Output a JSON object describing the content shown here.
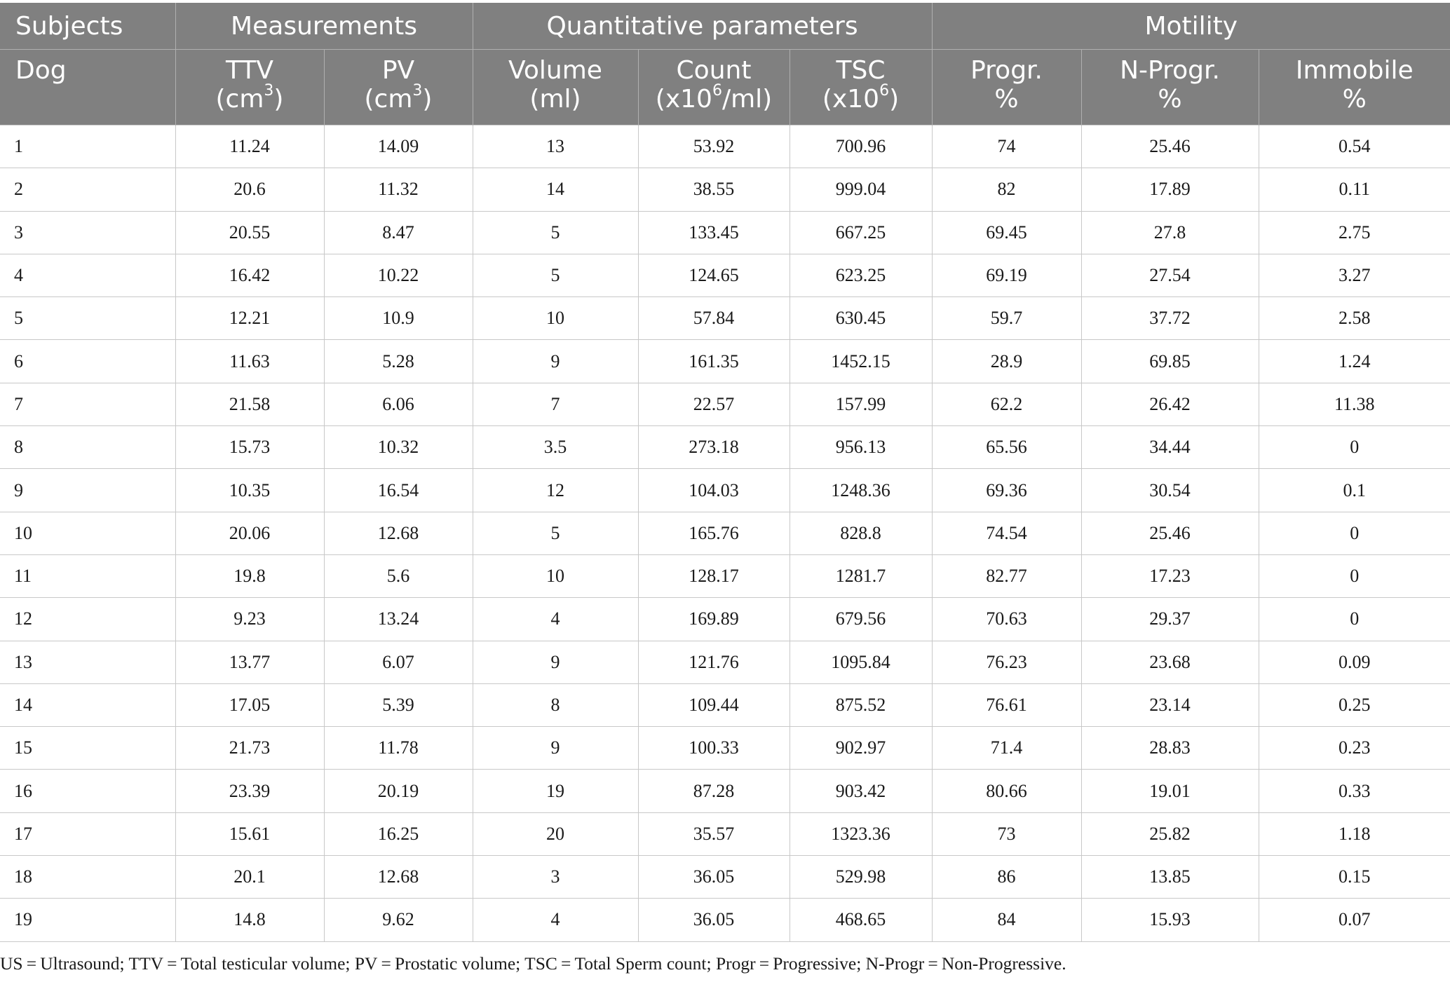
{
  "header": {
    "groups": [
      "Subjects",
      "Measurements",
      "Quantitative parameters",
      "Motility"
    ],
    "subject_label": "Dog",
    "columns": [
      {
        "name": "TTV",
        "unit_pre": "(cm",
        "unit_sup": "3",
        "unit_post": ")"
      },
      {
        "name": "PV",
        "unit_pre": "(cm",
        "unit_sup": "3",
        "unit_post": ")"
      },
      {
        "name": "Volume",
        "unit_pre": "(ml)",
        "unit_sup": "",
        "unit_post": ""
      },
      {
        "name": "Count",
        "unit_pre": "(x10",
        "unit_sup": "6",
        "unit_post": "/ml)"
      },
      {
        "name": "TSC",
        "unit_pre": "(x10",
        "unit_sup": "6",
        "unit_post": ")"
      },
      {
        "name": "Progr.",
        "unit_pre": "%",
        "unit_sup": "",
        "unit_post": ""
      },
      {
        "name": "N-Progr.",
        "unit_pre": "%",
        "unit_sup": "",
        "unit_post": ""
      },
      {
        "name": "Immobile",
        "unit_pre": "%",
        "unit_sup": "",
        "unit_post": ""
      }
    ]
  },
  "rows": [
    [
      "1",
      "11.24",
      "14.09",
      "13",
      "53.92",
      "700.96",
      "74",
      "25.46",
      "0.54"
    ],
    [
      "2",
      "20.6",
      "11.32",
      "14",
      "38.55",
      "999.04",
      "82",
      "17.89",
      "0.11"
    ],
    [
      "3",
      "20.55",
      "8.47",
      "5",
      "133.45",
      "667.25",
      "69.45",
      "27.8",
      "2.75"
    ],
    [
      "4",
      "16.42",
      "10.22",
      "5",
      "124.65",
      "623.25",
      "69.19",
      "27.54",
      "3.27"
    ],
    [
      "5",
      "12.21",
      "10.9",
      "10",
      "57.84",
      "630.45",
      "59.7",
      "37.72",
      "2.58"
    ],
    [
      "6",
      "11.63",
      "5.28",
      "9",
      "161.35",
      "1452.15",
      "28.9",
      "69.85",
      "1.24"
    ],
    [
      "7",
      "21.58",
      "6.06",
      "7",
      "22.57",
      "157.99",
      "62.2",
      "26.42",
      "11.38"
    ],
    [
      "8",
      "15.73",
      "10.32",
      "3.5",
      "273.18",
      "956.13",
      "65.56",
      "34.44",
      "0"
    ],
    [
      "9",
      "10.35",
      "16.54",
      "12",
      "104.03",
      "1248.36",
      "69.36",
      "30.54",
      "0.1"
    ],
    [
      "10",
      "20.06",
      "12.68",
      "5",
      "165.76",
      "828.8",
      "74.54",
      "25.46",
      "0"
    ],
    [
      "11",
      "19.8",
      "5.6",
      "10",
      "128.17",
      "1281.7",
      "82.77",
      "17.23",
      "0"
    ],
    [
      "12",
      "9.23",
      "13.24",
      "4",
      "169.89",
      "679.56",
      "70.63",
      "29.37",
      "0"
    ],
    [
      "13",
      "13.77",
      "6.07",
      "9",
      "121.76",
      "1095.84",
      "76.23",
      "23.68",
      "0.09"
    ],
    [
      "14",
      "17.05",
      "5.39",
      "8",
      "109.44",
      "875.52",
      "76.61",
      "23.14",
      "0.25"
    ],
    [
      "15",
      "21.73",
      "11.78",
      "9",
      "100.33",
      "902.97",
      "71.4",
      "28.83",
      "0.23"
    ],
    [
      "16",
      "23.39",
      "20.19",
      "19",
      "87.28",
      "903.42",
      "80.66",
      "19.01",
      "0.33"
    ],
    [
      "17",
      "15.61",
      "16.25",
      "20",
      "35.57",
      "1323.36",
      "73",
      "25.82",
      "1.18"
    ],
    [
      "18",
      "20.1",
      "12.68",
      "3",
      "36.05",
      "529.98",
      "86",
      "13.85",
      "0.15"
    ],
    [
      "19",
      "14.8",
      "9.62",
      "4",
      "36.05",
      "468.65",
      "84",
      "15.93",
      "0.07"
    ]
  ],
  "footnote": "US = Ultrasound; TTV = Total testicular volume; PV = Prostatic volume; TSC = Total Sperm count; Progr = Progressive; N-Progr = Non-Progressive."
}
